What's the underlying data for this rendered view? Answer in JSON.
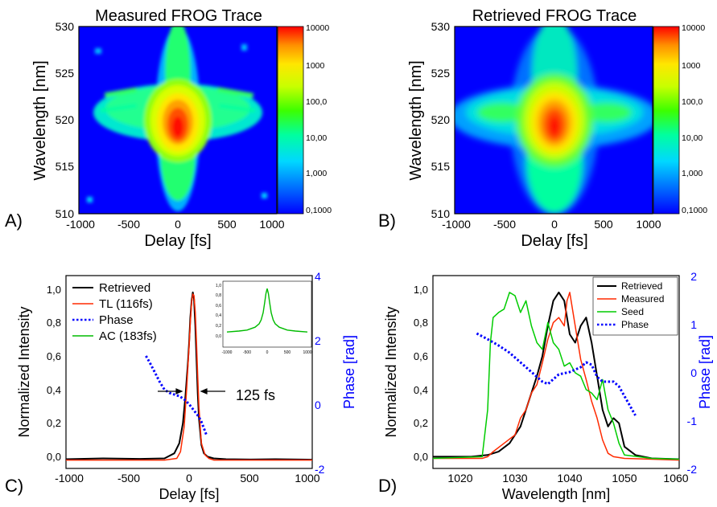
{
  "chart_data": [
    {
      "panel_label": "A)",
      "type": "heatmap",
      "title": "Measured FROG Trace",
      "xlabel": "Delay [fs]",
      "ylabel": "Wavelength [nm]",
      "xlim": [
        -1000,
        1000
      ],
      "ylim": [
        510,
        530
      ],
      "xticks": [
        "-1000",
        "-500",
        "0",
        "500",
        "1000"
      ],
      "yticks": [
        "510",
        "515",
        "520",
        "525",
        "530"
      ],
      "colorbar": {
        "scale": "log",
        "labels": [
          "10000",
          "1000",
          "100,0",
          "10,00",
          "1,000",
          "0,1000"
        ]
      },
      "peak": {
        "delay": 0,
        "wavelength": 519.5
      },
      "colors": [
        "#0000ff",
        "#006fff",
        "#00d8ff",
        "#00ffa0",
        "#3cff00",
        "#c8ff00",
        "#ffe600",
        "#ffa000",
        "#ff5000",
        "#ff0000"
      ]
    },
    {
      "panel_label": "B)",
      "type": "heatmap",
      "title": "Retrieved FROG Trace",
      "xlabel": "Delay [fs]",
      "ylabel": "Wavelength [nm]",
      "xlim": [
        -1000,
        1000
      ],
      "ylim": [
        510,
        530
      ],
      "xticks": [
        "-1000",
        "-500",
        "0",
        "500",
        "1000"
      ],
      "yticks": [
        "510",
        "515",
        "520",
        "525",
        "530"
      ],
      "colorbar": {
        "scale": "log",
        "labels": [
          "10000",
          "1000",
          "100,0",
          "10,00",
          "1,000",
          "0,1000"
        ]
      },
      "peak": {
        "delay": 0,
        "wavelength": 519.5
      }
    },
    {
      "panel_label": "C)",
      "type": "line",
      "xlabel": "Delay [fs]",
      "ylabel": "Normalized Intensity",
      "y2label": "Phase [rad]",
      "xlim": [
        -1000,
        1000
      ],
      "ylim": [
        -0.05,
        1.1
      ],
      "y2lim": [
        -2,
        4
      ],
      "xticks": [
        "-1000",
        "-500",
        "0",
        "500",
        "1000"
      ],
      "yticks": [
        "0,0",
        "0,2",
        "0,4",
        "0,6",
        "0,8",
        "1,0"
      ],
      "y2ticks": [
        "-2",
        "0",
        "2",
        "4"
      ],
      "annotation": "125 fs",
      "legend_position": "top-left",
      "series": [
        {
          "name": "Retrieved",
          "color": "#000000",
          "style": "solid",
          "x": [
            -1000,
            -700,
            -400,
            -200,
            -120,
            -80,
            -50,
            -30,
            -10,
            0,
            10,
            20,
            30,
            40,
            50,
            60,
            70,
            80,
            100,
            120,
            150,
            200,
            300,
            500,
            700,
            1000
          ],
          "y": [
            0.005,
            0.01,
            0.007,
            0.01,
            0.04,
            0.1,
            0.22,
            0.38,
            0.58,
            0.7,
            0.85,
            0.95,
            1.0,
            0.96,
            0.8,
            0.6,
            0.4,
            0.25,
            0.09,
            0.04,
            0.02,
            0.01,
            0.005,
            0.003,
            0.005,
            0.002
          ]
        },
        {
          "name": "TL (116fs)",
          "color": "#ff2a00",
          "style": "solid",
          "x": [
            -1000,
            -200,
            -100,
            -70,
            -40,
            -20,
            0,
            10,
            20,
            30,
            40,
            50,
            60,
            70,
            80,
            90,
            100,
            130,
            160,
            200,
            1000
          ],
          "y": [
            0,
            0,
            0.01,
            0.05,
            0.2,
            0.42,
            0.68,
            0.82,
            0.94,
            0.99,
            0.98,
            0.88,
            0.7,
            0.5,
            0.32,
            0.2,
            0.1,
            0.03,
            0.01,
            0,
            0
          ]
        },
        {
          "name": "Phase",
          "color": "#0000ff",
          "style": "dotted",
          "axis": "right",
          "x": [
            -350,
            -320,
            -280,
            -240,
            -200,
            -160,
            -120,
            -80,
            -40,
            0,
            20,
            40,
            60,
            80,
            100,
            120,
            140
          ],
          "y": [
            1.5,
            1.3,
            1.0,
            0.7,
            0.45,
            0.35,
            0.3,
            0.25,
            0.15,
            0,
            -0.1,
            -0.2,
            -0.3,
            -0.4,
            -0.55,
            -0.75,
            -0.95
          ]
        },
        {
          "name": "AC (183fs)",
          "color": "#00bb00",
          "style": "solid",
          "x": [],
          "y": []
        }
      ],
      "inset": {
        "xticks": [
          "-1000",
          "-500",
          "0",
          "500",
          "1000"
        ],
        "yticks": [
          "0,0",
          "0,2",
          "0,4",
          "0,6",
          "0,8",
          "1,0"
        ],
        "series_name": "AC (183fs)",
        "color": "#00bb00",
        "x": [
          -1000,
          -700,
          -500,
          -300,
          -200,
          -150,
          -100,
          -60,
          -30,
          0,
          30,
          60,
          100,
          150,
          200,
          300,
          500,
          700,
          1000
        ],
        "y": [
          0.08,
          0.1,
          0.12,
          0.18,
          0.25,
          0.33,
          0.48,
          0.7,
          0.88,
          0.98,
          0.88,
          0.7,
          0.48,
          0.33,
          0.25,
          0.18,
          0.12,
          0.1,
          0.08
        ]
      }
    },
    {
      "panel_label": "D)",
      "type": "line",
      "xlabel": "Wavelength [nm]",
      "ylabel": "Normalized Intensity",
      "y2label": "Phase [rad]",
      "xlim": [
        1015,
        1060
      ],
      "ylim": [
        -0.05,
        1.1
      ],
      "y2lim": [
        -2,
        2
      ],
      "xticks": [
        "1020",
        "1030",
        "1040",
        "1050",
        "1060"
      ],
      "yticks": [
        "0,0",
        "0,2",
        "0,4",
        "0,6",
        "0,8",
        "1,0"
      ],
      "y2ticks": [
        "-2",
        "-1",
        "0",
        "1",
        "2"
      ],
      "legend_position": "top-right",
      "series": [
        {
          "name": "Retrieved",
          "color": "#000000",
          "style": "solid",
          "x": [
            1015,
            1022,
            1025,
            1027,
            1029,
            1031,
            1032,
            1033,
            1034,
            1035,
            1036,
            1037,
            1038,
            1039,
            1040,
            1041,
            1042,
            1043,
            1044,
            1045,
            1046,
            1047,
            1048,
            1049,
            1050,
            1052,
            1055,
            1060
          ],
          "y": [
            0.02,
            0.02,
            0.03,
            0.05,
            0.1,
            0.2,
            0.3,
            0.4,
            0.5,
            0.62,
            0.8,
            0.95,
            1.0,
            0.95,
            0.75,
            0.7,
            0.8,
            0.85,
            0.7,
            0.5,
            0.3,
            0.2,
            0.25,
            0.22,
            0.08,
            0.03,
            0.01,
            0.005
          ]
        },
        {
          "name": "Measured",
          "color": "#ff2a00",
          "style": "solid",
          "x": [
            1015,
            1024,
            1025,
            1026,
            1028,
            1030,
            1031,
            1032,
            1033,
            1034,
            1035,
            1036,
            1037,
            1038,
            1039,
            1039.5,
            1040,
            1040.5,
            1041,
            1042,
            1043,
            1044,
            1045,
            1046,
            1047,
            1048,
            1050,
            1055,
            1060
          ],
          "y": [
            0.01,
            0.01,
            0.02,
            0.05,
            0.1,
            0.15,
            0.25,
            0.3,
            0.4,
            0.45,
            0.58,
            0.72,
            0.82,
            0.85,
            0.8,
            0.95,
            1.0,
            0.9,
            0.8,
            0.6,
            0.48,
            0.35,
            0.25,
            0.12,
            0.04,
            0.02,
            0.01,
            0.005,
            0
          ]
        },
        {
          "name": "Seed",
          "color": "#00cc00",
          "style": "solid",
          "x": [
            1015,
            1024,
            1025,
            1025.5,
            1026,
            1027,
            1028,
            1029,
            1030,
            1031,
            1032,
            1033,
            1034,
            1035,
            1036,
            1037,
            1038,
            1039,
            1040,
            1041,
            1042,
            1043,
            1044,
            1045,
            1046,
            1047,
            1048,
            1049,
            1050,
            1055,
            1060
          ],
          "y": [
            0.01,
            0.02,
            0.3,
            0.7,
            0.85,
            0.88,
            0.9,
            1.0,
            0.98,
            0.88,
            0.95,
            0.8,
            0.7,
            0.66,
            0.82,
            0.7,
            0.66,
            0.56,
            0.58,
            0.52,
            0.5,
            0.42,
            0.4,
            0.36,
            0.48,
            0.3,
            0.22,
            0.1,
            0.03,
            0.01,
            0.005
          ]
        },
        {
          "name": "Phase",
          "color": "#0000ff",
          "style": "dotted",
          "axis": "right",
          "x": [
            1023,
            1025,
            1027,
            1029,
            1031,
            1033,
            1035,
            1036,
            1037,
            1038,
            1040,
            1042,
            1043,
            1044,
            1045,
            1046,
            1047,
            1048,
            1049,
            1050,
            1051,
            1052
          ],
          "y": [
            0.8,
            0.68,
            0.55,
            0.4,
            0.2,
            0,
            -0.2,
            -0.25,
            -0.15,
            -0.05,
            0,
            0.1,
            0.2,
            0.15,
            -0.1,
            -0.2,
            -0.2,
            -0.2,
            -0.3,
            -0.5,
            -0.7,
            -0.9
          ]
        }
      ]
    }
  ]
}
